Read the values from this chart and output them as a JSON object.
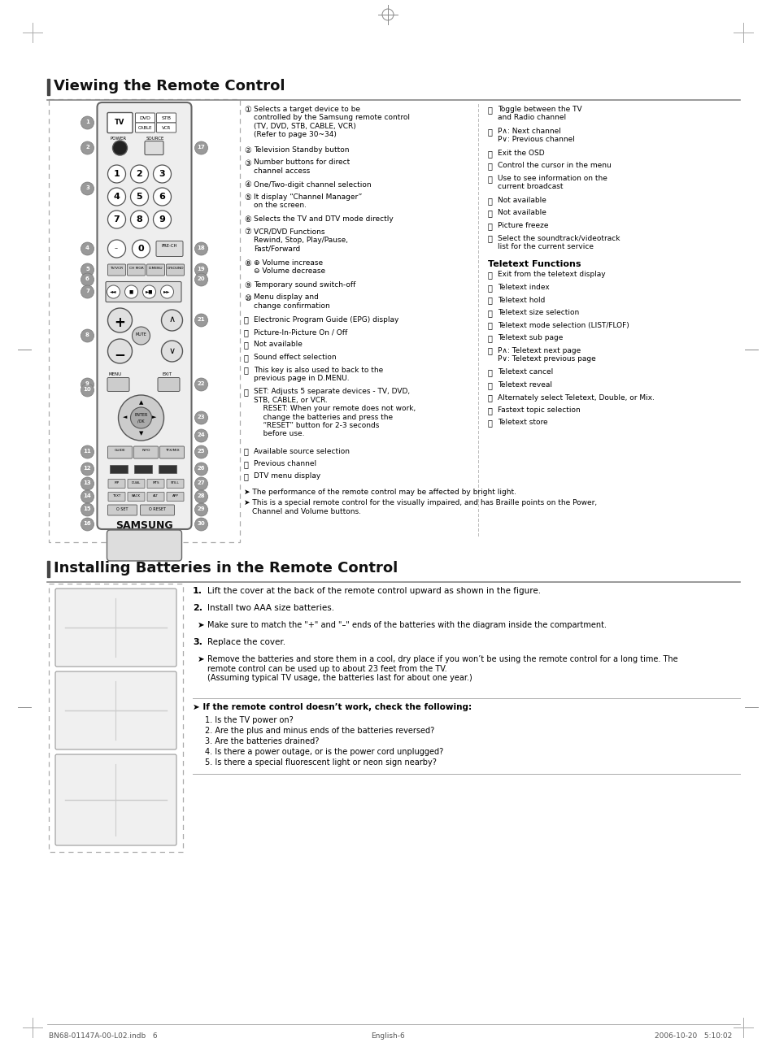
{
  "title1": "Viewing the Remote Control",
  "title2": "Installing Batteries in the Remote Control",
  "bg_color": "#ffffff",
  "footer_left": "BN68-01147A-00-L02.indb   6",
  "footer_right": "2006-10-20   5:10:02",
  "footer_center": "English-6",
  "left_items": [
    [
      "①",
      "Selects a target device to be\ncontrolled by the Samsung remote control\n(TV, DVD, STB, CABLE, VCR)\n(Refer to page 30~34)"
    ],
    [
      "②",
      "Television Standby button"
    ],
    [
      "③",
      "Number buttons for direct\nchannel access"
    ],
    [
      "④",
      "One/Two-digit channel selection"
    ],
    [
      "⑤",
      "It display “Channel Manager”\non the screen."
    ],
    [
      "⑥",
      "Selects the TV and DTV mode directly"
    ],
    [
      "⑦",
      "VCR/DVD Functions\nRewind, Stop, Play/Pause,\nFast/Forward"
    ],
    [
      "⑧",
      "⊕ Volume increase\n⊖ Volume decrease"
    ],
    [
      "⑨",
      "Temporary sound switch-off"
    ],
    [
      "⑩",
      "Menu display and\nchange confirmation"
    ],
    [
      "⑪",
      "Electronic Program Guide (EPG) display"
    ],
    [
      "⑫",
      "Picture-In-Picture On / Off"
    ],
    [
      "⑬",
      "Not available"
    ],
    [
      "⑭",
      "Sound effect selection"
    ],
    [
      "⑮",
      "This key is also used to back to the\nprevious page in D.MENU."
    ],
    [
      "⑯",
      "SET: Adjusts 5 separate devices - TV, DVD,\nSTB, CABLE, or VCR.\n    RESET: When your remote does not work,\n    change the batteries and press the\n    “RESET” button for 2-3 seconds\n    before use."
    ],
    [
      "⑰",
      "Available source selection"
    ],
    [
      "⑱",
      "Previous channel"
    ],
    [
      "⑲",
      "DTV menu display"
    ]
  ],
  "right_items": [
    [
      "⑳",
      "Toggle between the TV\nand Radio channel"
    ],
    [
      "⑴",
      "P∧: Next channel\nP∨: Previous channel"
    ],
    [
      "⑵",
      "Exit the OSD"
    ],
    [
      "⑶",
      "Control the cursor in the menu"
    ],
    [
      "⑷",
      "Use to see information on the\ncurrent broadcast"
    ],
    [
      "⑸",
      "Not available"
    ],
    [
      "⑹",
      "Not available"
    ],
    [
      "⑺",
      "Picture freeze"
    ],
    [
      "⑻",
      "Select the soundtrack/videotrack\nlist for the current service"
    ]
  ],
  "teletext_items": [
    [
      "⓴",
      "Exit from the teletext display"
    ],
    [
      "⓰",
      "Teletext index"
    ],
    [
      "⓱",
      "Teletext hold"
    ],
    [
      "⓲",
      "Teletext size selection"
    ],
    [
      "⓳",
      "Teletext mode selection (LIST/FLOF)"
    ],
    [
      "⓮",
      "Teletext sub page"
    ],
    [
      "⓯",
      "P∧: Teletext next page\nP∨: Teletext previous page"
    ],
    [
      "⓵",
      "Teletext cancel"
    ],
    [
      "⓶",
      "Teletext reveal"
    ],
    [
      "⓷",
      "Alternately select Teletext, Double, or Mix."
    ],
    [
      "⓸",
      "Fastext topic selection"
    ],
    [
      "⓹",
      "Teletext store"
    ]
  ],
  "install_steps": [
    [
      "1.",
      "Lift the cover at the back of the remote control upward as shown in the figure.",
      false
    ],
    [
      "2.",
      "Install two AAA size batteries.",
      false
    ],
    [
      "➤",
      "Make sure to match the \"+\" and \"–\" ends of the batteries with the diagram inside the compartment.",
      true
    ],
    [
      "3.",
      "Replace the cover.",
      false
    ],
    [
      "➤",
      "Remove the batteries and store them in a cool, dry place if you won’t be using the remote control for a long time. The\nremote control can be used up to about 23 feet from the TV.\n(Assuming typical TV usage, the batteries last for about one year.)",
      true
    ]
  ],
  "warn_title": "➤ If the remote control doesn’t work, check the following:",
  "warn_items": [
    "1. Is the TV power on?",
    "2. Are the plus and minus ends of the batteries reversed?",
    "3. Are the batteries drained?",
    "4. Is there a power outage, or is the power cord unplugged?",
    "5. Is there a special fluorescent light or neon sign nearby?"
  ]
}
